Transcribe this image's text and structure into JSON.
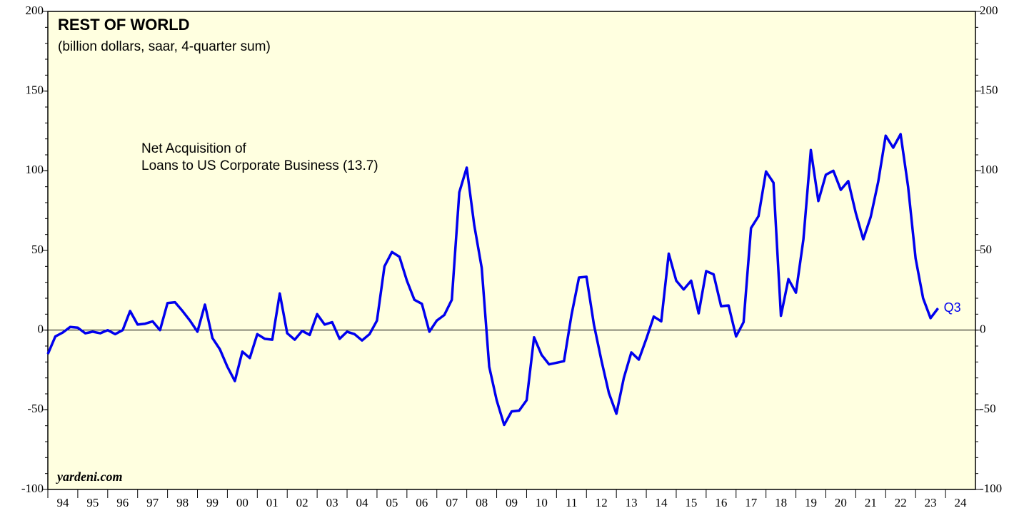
{
  "chart_data": {
    "type": "line",
    "title": "REST OF WORLD",
    "subtitle": "(billion dollars, saar, 4-quarter sum)",
    "annotations": [
      "Net Acquisition of",
      "Loans to US Corporate Business (13.7)"
    ],
    "end_label": "Q3",
    "source": "yardeni.com",
    "x": [
      1994,
      1994.25,
      1994.5,
      1994.75,
      1995,
      1995.25,
      1995.5,
      1995.75,
      1996,
      1996.25,
      1996.5,
      1996.75,
      1997,
      1997.25,
      1997.5,
      1997.75,
      1998,
      1998.25,
      1998.5,
      1998.75,
      1999,
      1999.25,
      1999.5,
      1999.75,
      2000,
      2000.25,
      2000.5,
      2000.75,
      2001,
      2001.25,
      2001.5,
      2001.75,
      2002,
      2002.25,
      2002.5,
      2002.75,
      2003,
      2003.25,
      2003.5,
      2003.75,
      2004,
      2004.25,
      2004.5,
      2004.75,
      2005,
      2005.25,
      2005.5,
      2005.75,
      2006,
      2006.25,
      2006.5,
      2006.75,
      2007,
      2007.25,
      2007.5,
      2007.75,
      2008,
      2008.25,
      2008.5,
      2008.75,
      2009,
      2009.25,
      2009.5,
      2009.75,
      2010,
      2010.25,
      2010.5,
      2010.75,
      2011,
      2011.25,
      2011.5,
      2011.75,
      2012,
      2012.25,
      2012.5,
      2012.75,
      2013,
      2013.25,
      2013.5,
      2013.75,
      2014,
      2014.25,
      2014.5,
      2014.75,
      2015,
      2015.25,
      2015.5,
      2015.75,
      2016,
      2016.25,
      2016.5,
      2016.75,
      2017,
      2017.25,
      2017.5,
      2017.75,
      2018,
      2018.25,
      2018.5,
      2018.75,
      2019,
      2019.25,
      2019.5,
      2019.75,
      2020,
      2020.25,
      2020.5,
      2020.75,
      2021,
      2021.25,
      2021.5,
      2021.75,
      2022,
      2022.25,
      2022.5,
      2022.75,
      2023,
      2023.25,
      2023.5,
      2023.75
    ],
    "series": [
      {
        "name": "Net Acquisition of Loans to US Corporate Business",
        "color": "#0000ee",
        "values": [
          -15,
          -4,
          -1.5,
          2,
          1.5,
          -2,
          -1,
          -2,
          0,
          -2.5,
          0,
          12,
          3.5,
          4,
          5.5,
          0,
          17,
          17.5,
          12,
          6,
          -1,
          16,
          -5,
          -12,
          -23,
          -32,
          -13.5,
          -17.5,
          -2.5,
          -5.5,
          -6,
          23,
          -2,
          -6,
          -0.5,
          -3,
          10,
          3.5,
          5,
          -5.5,
          -1,
          -2.5,
          -6.5,
          -2.5,
          6,
          40,
          49,
          46,
          31,
          19,
          16.5,
          -1,
          6,
          9.5,
          19,
          86.5,
          102,
          66,
          39,
          -23,
          -44,
          -59.5,
          -51,
          -50.5,
          -44,
          -4.5,
          -15.5,
          -21.5,
          -20.5,
          -19.5,
          9.5,
          33,
          33.5,
          3.5,
          -19,
          -39.5,
          -52.5,
          -30,
          -14,
          -18.5,
          -5.5,
          8.5,
          5.5,
          48,
          31,
          25.5,
          31,
          10.5,
          37,
          35,
          15,
          15.5,
          -4,
          5,
          64,
          71.5,
          99.5,
          92.5,
          9,
          32,
          23.5,
          57,
          113,
          81,
          97.5,
          100,
          88,
          93.5,
          73.5,
          57,
          71,
          93,
          122,
          114.5,
          123,
          90,
          45,
          20,
          7.5,
          13.7
        ]
      }
    ],
    "xlim": [
      1994,
      2025
    ],
    "xticks": [
      {
        "value": 1994,
        "label": "94"
      },
      {
        "value": 1995,
        "label": "95"
      },
      {
        "value": 1996,
        "label": "96"
      },
      {
        "value": 1997,
        "label": "97"
      },
      {
        "value": 1998,
        "label": "98"
      },
      {
        "value": 1999,
        "label": "99"
      },
      {
        "value": 2000,
        "label": "00"
      },
      {
        "value": 2001,
        "label": "01"
      },
      {
        "value": 2002,
        "label": "02"
      },
      {
        "value": 2003,
        "label": "03"
      },
      {
        "value": 2004,
        "label": "04"
      },
      {
        "value": 2005,
        "label": "05"
      },
      {
        "value": 2006,
        "label": "06"
      },
      {
        "value": 2007,
        "label": "07"
      },
      {
        "value": 2008,
        "label": "08"
      },
      {
        "value": 2009,
        "label": "09"
      },
      {
        "value": 2010,
        "label": "10"
      },
      {
        "value": 2011,
        "label": "11"
      },
      {
        "value": 2012,
        "label": "12"
      },
      {
        "value": 2013,
        "label": "13"
      },
      {
        "value": 2014,
        "label": "14"
      },
      {
        "value": 2015,
        "label": "15"
      },
      {
        "value": 2016,
        "label": "16"
      },
      {
        "value": 2017,
        "label": "17"
      },
      {
        "value": 2018,
        "label": "18"
      },
      {
        "value": 2019,
        "label": "19"
      },
      {
        "value": 2020,
        "label": "20"
      },
      {
        "value": 2021,
        "label": "21"
      },
      {
        "value": 2022,
        "label": "22"
      },
      {
        "value": 2023,
        "label": "23"
      },
      {
        "value": 2024,
        "label": "24"
      }
    ],
    "ylim": [
      -100,
      200
    ],
    "yticks": [
      -100,
      -50,
      0,
      50,
      100,
      150,
      200
    ]
  }
}
